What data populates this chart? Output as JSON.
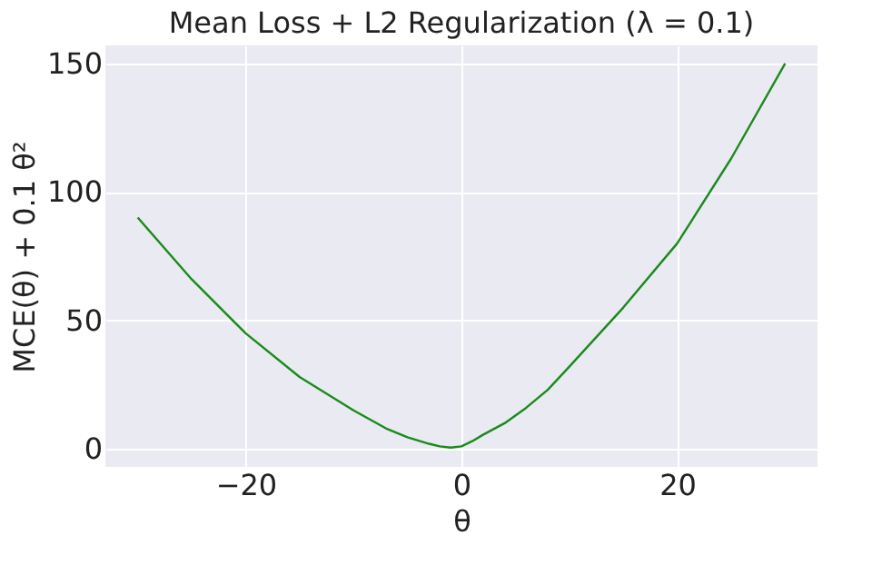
{
  "chart_data": {
    "type": "line",
    "title": "Mean Loss + L2 Regularization (λ = 0.1)",
    "xlabel": "θ",
    "ylabel": "MCE(θ) + 0.1 θ²",
    "x": [
      -30,
      -25,
      -20,
      -15,
      -10,
      -7,
      -5,
      -3,
      -2,
      -1,
      0,
      1,
      2,
      4,
      6,
      8,
      10,
      15,
      20,
      25,
      30
    ],
    "series": [
      {
        "color": "#1a8a1a",
        "values": [
          90,
          66,
          45,
          28,
          15,
          8,
          4.5,
          2,
          1,
          0.5,
          1,
          3,
          5.5,
          10,
          16,
          23,
          32,
          55,
          80,
          113,
          150
        ]
      }
    ],
    "xlim": [
      -33,
      33
    ],
    "ylim": [
      -7,
      157
    ],
    "xticks": [
      -20,
      0,
      20
    ],
    "yticks": [
      0,
      50,
      100,
      150
    ],
    "grid": true,
    "marker": "none",
    "line_style": "solid"
  }
}
